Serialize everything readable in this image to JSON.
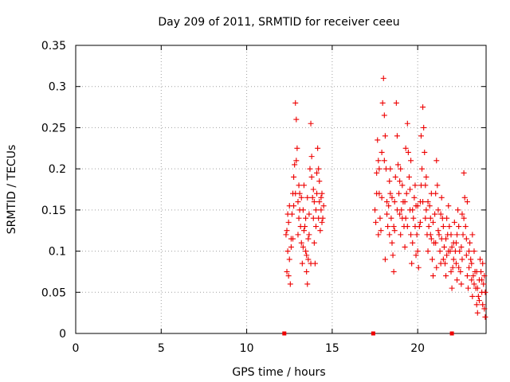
{
  "chart_data": {
    "type": "scatter",
    "title": "Day 209 of 2011, SRMTID for receiver ceeu",
    "xlabel": "GPS time / hours",
    "ylabel": "SRMTID / TECUs",
    "xlim": [
      0,
      24
    ],
    "ylim": [
      0,
      0.35
    ],
    "xticks": [
      0,
      5,
      10,
      15,
      20
    ],
    "xtick_labels": [
      "0",
      "5",
      "10",
      "15",
      "20"
    ],
    "yticks": [
      0,
      0.05,
      0.1,
      0.15,
      0.2,
      0.25,
      0.3,
      0.35
    ],
    "ytick_labels": [
      "0",
      "0.05",
      "0.1",
      "0.15",
      "0.2",
      "0.25",
      "0.3",
      "0.35"
    ],
    "grid": true,
    "marker": "+",
    "color": "#ee0000",
    "series": [
      {
        "name": "SRMTID",
        "points": [
          [
            12.3,
            0.12
          ],
          [
            12.35,
            0.075
          ],
          [
            12.4,
            0.1
          ],
          [
            12.45,
            0.135
          ],
          [
            12.5,
            0.09
          ],
          [
            12.55,
            0.06
          ],
          [
            12.6,
            0.115
          ],
          [
            12.65,
            0.145
          ],
          [
            12.7,
            0.17
          ],
          [
            12.75,
            0.19
          ],
          [
            12.8,
            0.205
          ],
          [
            12.85,
            0.28
          ],
          [
            12.9,
            0.26
          ],
          [
            12.95,
            0.225
          ],
          [
            13.0,
            0.16
          ],
          [
            13.05,
            0.14
          ],
          [
            13.1,
            0.17
          ],
          [
            13.15,
            0.13
          ],
          [
            13.2,
            0.11
          ],
          [
            13.25,
            0.085
          ],
          [
            13.3,
            0.15
          ],
          [
            13.35,
            0.18
          ],
          [
            13.4,
            0.13
          ],
          [
            13.45,
            0.1
          ],
          [
            13.5,
            0.075
          ],
          [
            13.55,
            0.06
          ],
          [
            13.6,
            0.09
          ],
          [
            13.65,
            0.12
          ],
          [
            13.7,
            0.2
          ],
          [
            13.75,
            0.255
          ],
          [
            13.8,
            0.215
          ],
          [
            13.85,
            0.165
          ],
          [
            13.9,
            0.14
          ],
          [
            13.95,
            0.11
          ],
          [
            14.0,
            0.085
          ],
          [
            14.05,
            0.13
          ],
          [
            14.1,
            0.17
          ],
          [
            14.15,
            0.225
          ],
          [
            14.2,
            0.2
          ],
          [
            14.25,
            0.16
          ],
          [
            14.3,
            0.125
          ],
          [
            14.35,
            0.15
          ],
          [
            14.4,
            0.17
          ],
          [
            14.45,
            0.14
          ],
          [
            14.5,
            0.155
          ],
          [
            12.35,
            0.125
          ],
          [
            12.45,
            0.07
          ],
          [
            12.6,
            0.105
          ],
          [
            12.75,
            0.155
          ],
          [
            12.9,
            0.21
          ],
          [
            13.05,
            0.18
          ],
          [
            13.2,
            0.165
          ],
          [
            13.35,
            0.125
          ],
          [
            13.5,
            0.095
          ],
          [
            13.65,
            0.145
          ],
          [
            13.8,
            0.19
          ],
          [
            13.95,
            0.16
          ],
          [
            14.1,
            0.195
          ],
          [
            14.25,
            0.185
          ],
          [
            14.4,
            0.135
          ],
          [
            12.5,
            0.155
          ],
          [
            12.7,
            0.115
          ],
          [
            12.85,
            0.17
          ],
          [
            13.1,
            0.15
          ],
          [
            13.3,
            0.105
          ],
          [
            13.45,
            0.14
          ],
          [
            13.6,
            0.115
          ],
          [
            13.75,
            0.085
          ],
          [
            13.9,
            0.175
          ],
          [
            14.05,
            0.15
          ],
          [
            14.2,
            0.14
          ],
          [
            14.35,
            0.165
          ],
          [
            12.4,
            0.145
          ],
          [
            13.0,
            0.12
          ],
          [
            13.55,
            0.165
          ],
          [
            17.5,
            0.15
          ],
          [
            17.55,
            0.135
          ],
          [
            17.6,
            0.195
          ],
          [
            17.65,
            0.235
          ],
          [
            17.7,
            0.21
          ],
          [
            17.75,
            0.17
          ],
          [
            17.8,
            0.14
          ],
          [
            17.85,
            0.125
          ],
          [
            17.9,
            0.22
          ],
          [
            17.95,
            0.28
          ],
          [
            18.0,
            0.31
          ],
          [
            18.05,
            0.265
          ],
          [
            18.1,
            0.24
          ],
          [
            18.15,
            0.2
          ],
          [
            18.2,
            0.16
          ],
          [
            18.25,
            0.13
          ],
          [
            18.3,
            0.155
          ],
          [
            18.35,
            0.185
          ],
          [
            18.4,
            0.17
          ],
          [
            18.45,
            0.14
          ],
          [
            18.5,
            0.11
          ],
          [
            18.55,
            0.095
          ],
          [
            18.6,
            0.13
          ],
          [
            18.65,
            0.16
          ],
          [
            18.7,
            0.19
          ],
          [
            18.75,
            0.28
          ],
          [
            18.8,
            0.24
          ],
          [
            18.85,
            0.205
          ],
          [
            18.9,
            0.17
          ],
          [
            18.95,
            0.145
          ],
          [
            19.0,
            0.12
          ],
          [
            19.05,
            0.15
          ],
          [
            19.1,
            0.18
          ],
          [
            19.15,
            0.16
          ],
          [
            19.2,
            0.13
          ],
          [
            19.25,
            0.105
          ],
          [
            19.3,
            0.14
          ],
          [
            19.35,
            0.17
          ],
          [
            19.4,
            0.255
          ],
          [
            19.45,
            0.22
          ],
          [
            19.5,
            0.19
          ],
          [
            19.55,
            0.15
          ],
          [
            19.6,
            0.12
          ],
          [
            19.65,
            0.085
          ],
          [
            19.7,
            0.11
          ],
          [
            19.75,
            0.14
          ],
          [
            19.8,
            0.165
          ],
          [
            19.85,
            0.18
          ],
          [
            19.9,
            0.155
          ],
          [
            19.95,
            0.12
          ],
          [
            20.0,
            0.1
          ],
          [
            20.05,
            0.08
          ],
          [
            20.1,
            0.13
          ],
          [
            20.15,
            0.16
          ],
          [
            20.2,
            0.18
          ],
          [
            20.25,
            0.2
          ],
          [
            20.3,
            0.275
          ],
          [
            20.35,
            0.25
          ],
          [
            20.4,
            0.22
          ],
          [
            20.45,
            0.18
          ],
          [
            20.5,
            0.15
          ],
          [
            20.55,
            0.12
          ],
          [
            20.6,
            0.1
          ],
          [
            20.65,
            0.13
          ],
          [
            20.7,
            0.155
          ],
          [
            20.75,
            0.14
          ],
          [
            20.8,
            0.115
          ],
          [
            20.85,
            0.09
          ],
          [
            20.9,
            0.07
          ],
          [
            20.95,
            0.11
          ],
          [
            21.0,
            0.145
          ],
          [
            21.05,
            0.17
          ],
          [
            21.1,
            0.21
          ],
          [
            21.15,
            0.18
          ],
          [
            21.2,
            0.15
          ],
          [
            21.25,
            0.12
          ],
          [
            21.3,
            0.1
          ],
          [
            21.35,
            0.085
          ],
          [
            21.4,
            0.115
          ],
          [
            21.45,
            0.14
          ],
          [
            21.5,
            0.13
          ],
          [
            21.55,
            0.105
          ],
          [
            21.6,
            0.085
          ],
          [
            21.65,
            0.07
          ],
          [
            21.7,
            0.095
          ],
          [
            21.75,
            0.12
          ],
          [
            21.8,
            0.155
          ],
          [
            21.85,
            0.13
          ],
          [
            21.9,
            0.1
          ],
          [
            21.95,
            0.075
          ],
          [
            22.0,
            0.055
          ],
          [
            22.05,
            0.08
          ],
          [
            22.1,
            0.11
          ],
          [
            22.15,
            0.135
          ],
          [
            22.2,
            0.1
          ],
          [
            22.25,
            0.085
          ],
          [
            22.3,
            0.12
          ],
          [
            22.35,
            0.15
          ],
          [
            22.4,
            0.13
          ],
          [
            22.45,
            0.1
          ],
          [
            22.5,
            0.075
          ],
          [
            22.55,
            0.06
          ],
          [
            22.6,
            0.09
          ],
          [
            22.65,
            0.12
          ],
          [
            22.7,
            0.195
          ],
          [
            22.75,
            0.165
          ],
          [
            22.8,
            0.13
          ],
          [
            22.85,
            0.095
          ],
          [
            22.9,
            0.07
          ],
          [
            22.95,
            0.055
          ],
          [
            23.0,
            0.08
          ],
          [
            23.05,
            0.11
          ],
          [
            23.1,
            0.09
          ],
          [
            23.15,
            0.065
          ],
          [
            23.2,
            0.045
          ],
          [
            23.25,
            0.07
          ],
          [
            23.3,
            0.1
          ],
          [
            23.35,
            0.075
          ],
          [
            23.4,
            0.055
          ],
          [
            23.45,
            0.035
          ],
          [
            23.5,
            0.025
          ],
          [
            23.55,
            0.045
          ],
          [
            23.6,
            0.065
          ],
          [
            23.65,
            0.09
          ],
          [
            23.7,
            0.075
          ],
          [
            23.75,
            0.05
          ],
          [
            23.8,
            0.035
          ],
          [
            23.85,
            0.06
          ],
          [
            23.9,
            0.07
          ],
          [
            23.95,
            0.05
          ],
          [
            17.6,
            0.17
          ],
          [
            17.75,
            0.2
          ],
          [
            17.9,
            0.165
          ],
          [
            18.05,
            0.21
          ],
          [
            18.2,
            0.145
          ],
          [
            18.35,
            0.12
          ],
          [
            18.5,
            0.165
          ],
          [
            18.65,
            0.125
          ],
          [
            18.8,
            0.15
          ],
          [
            18.95,
            0.185
          ],
          [
            19.1,
            0.14
          ],
          [
            19.25,
            0.16
          ],
          [
            19.4,
            0.13
          ],
          [
            19.55,
            0.175
          ],
          [
            19.7,
            0.15
          ],
          [
            19.85,
            0.13
          ],
          [
            20.0,
            0.155
          ],
          [
            20.15,
            0.135
          ],
          [
            20.3,
            0.16
          ],
          [
            20.45,
            0.14
          ],
          [
            20.6,
            0.16
          ],
          [
            20.75,
            0.12
          ],
          [
            20.9,
            0.135
          ],
          [
            21.05,
            0.11
          ],
          [
            21.2,
            0.125
          ],
          [
            21.35,
            0.145
          ],
          [
            21.5,
            0.09
          ],
          [
            21.65,
            0.115
          ],
          [
            21.8,
            0.1
          ],
          [
            21.95,
            0.12
          ],
          [
            22.1,
            0.09
          ],
          [
            22.25,
            0.11
          ],
          [
            22.4,
            0.08
          ],
          [
            22.55,
            0.105
          ],
          [
            22.7,
            0.14
          ],
          [
            22.85,
            0.115
          ],
          [
            23.0,
            0.1
          ],
          [
            23.15,
            0.085
          ],
          [
            23.3,
            0.06
          ],
          [
            23.45,
            0.075
          ],
          [
            23.6,
            0.04
          ],
          [
            23.75,
            0.065
          ],
          [
            23.9,
            0.03
          ],
          [
            17.7,
            0.12
          ],
          [
            18.1,
            0.09
          ],
          [
            18.4,
            0.2
          ],
          [
            18.6,
            0.075
          ],
          [
            19.0,
            0.2
          ],
          [
            19.3,
            0.225
          ],
          [
            19.6,
            0.21
          ],
          [
            19.9,
            0.095
          ],
          [
            20.2,
            0.24
          ],
          [
            20.5,
            0.19
          ],
          [
            20.8,
            0.17
          ],
          [
            21.1,
            0.08
          ],
          [
            21.4,
            0.165
          ],
          [
            21.7,
            0.14
          ],
          [
            22.0,
            0.105
          ],
          [
            22.3,
            0.065
          ],
          [
            22.6,
            0.145
          ],
          [
            22.9,
            0.16
          ],
          [
            23.2,
            0.12
          ],
          [
            23.5,
            0.055
          ],
          [
            23.8,
            0.085
          ],
          [
            23.95,
            0.02
          ]
        ]
      }
    ],
    "baseline_markers": [
      12.2,
      17.4,
      22.0
    ]
  }
}
